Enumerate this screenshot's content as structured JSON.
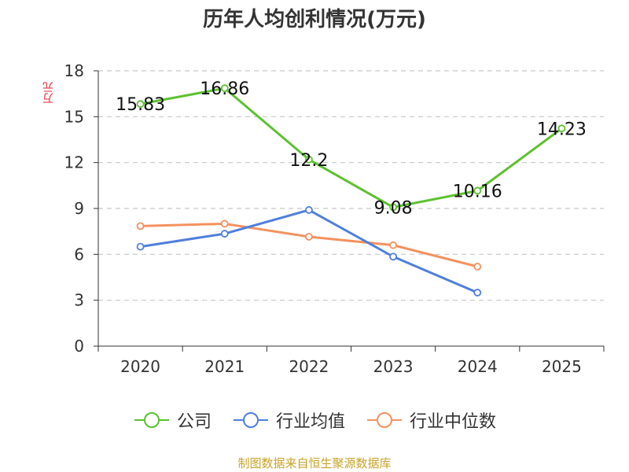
{
  "title": "历年人均创利情况(万元)",
  "source_note": "制图数据来自恒生聚源数据库",
  "colors": {
    "company": "#5cc12f",
    "industry_avg": "#4f7fdc",
    "industry_median": "#f4915e"
  },
  "chart_data": {
    "type": "line",
    "title": "历年人均创利情况(万元)",
    "xlabel": "",
    "ylabel": "万元",
    "categories": [
      "2020",
      "2021",
      "2022",
      "2023",
      "2024",
      "2025"
    ],
    "ylim": [
      0,
      18
    ],
    "yticks": [
      0,
      3,
      6,
      9,
      12,
      15,
      18
    ],
    "grid": true,
    "legend_position": "bottom",
    "series": [
      {
        "name": "公司",
        "color": "#5cc12f",
        "values": [
          15.83,
          16.86,
          12.2,
          9.08,
          10.16,
          14.23
        ],
        "labels": [
          "15.83",
          "16.86",
          "12.2",
          "9.08",
          "10.16",
          "14.23"
        ]
      },
      {
        "name": "行业均值",
        "color": "#4f7fdc",
        "values": [
          6.5,
          7.35,
          8.9,
          5.85,
          3.5,
          null
        ]
      },
      {
        "name": "行业中位数",
        "color": "#f4915e",
        "values": [
          7.85,
          8.0,
          7.15,
          6.6,
          5.2,
          null
        ]
      }
    ]
  }
}
